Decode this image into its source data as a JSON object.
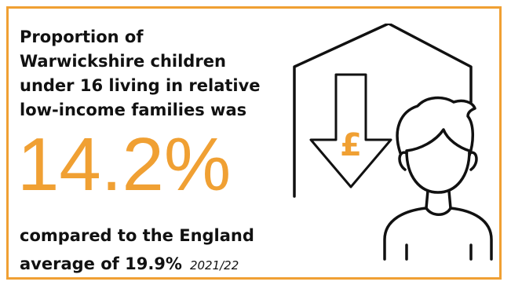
{
  "headline_lines": [
    "Proportion of",
    "Warwickshire children",
    "under 16 living in relative",
    "low-income families was"
  ],
  "big_value": "14.2%",
  "comparison_line1": "compared to the England",
  "comparison_line2": "average of 19.9%",
  "period": "2021/22",
  "pound_symbol": "£",
  "colors": {
    "accent": "#f0a033",
    "text": "#111111"
  },
  "icons": [
    "house-outline-icon",
    "down-arrow-icon",
    "child-person-icon"
  ]
}
